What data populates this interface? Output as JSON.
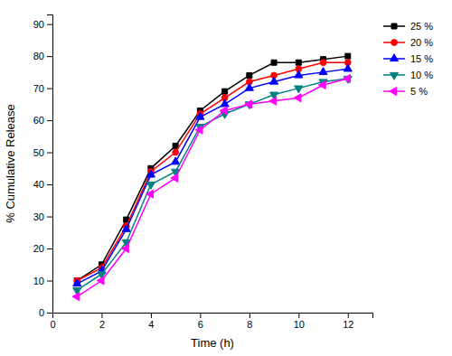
{
  "chart_data": {
    "type": "line",
    "x": [
      1,
      2,
      3,
      4,
      5,
      6,
      7,
      8,
      9,
      10,
      11,
      12
    ],
    "series": [
      {
        "name": "25 %",
        "color": "#000000",
        "marker": "square",
        "values": [
          10,
          15,
          29,
          45,
          52,
          63,
          69,
          74,
          78,
          78,
          79,
          80
        ]
      },
      {
        "name": "20 %",
        "color": "#ff0000",
        "marker": "circle",
        "values": [
          10,
          14,
          27,
          44,
          50,
          62,
          67,
          72,
          74,
          76,
          78,
          78
        ]
      },
      {
        "name": "15 %",
        "color": "#0000ff",
        "marker": "triangle-up",
        "values": [
          9,
          13,
          26,
          43,
          47,
          61,
          65,
          70,
          72,
          74,
          75,
          76
        ]
      },
      {
        "name": "10 %",
        "color": "#008080",
        "marker": "triangle-down",
        "values": [
          7,
          12,
          22,
          40,
          44,
          58,
          62,
          65,
          68,
          70,
          72,
          73
        ]
      },
      {
        "name": "5 %",
        "color": "#ff00ff",
        "marker": "triangle-left",
        "values": [
          5,
          10,
          20,
          37,
          42,
          57,
          63,
          65,
          66,
          67,
          71,
          73
        ]
      }
    ],
    "xlabel": "Time (h)",
    "ylabel": "% Cumulative Release",
    "xlim": [
      0,
      13
    ],
    "ylim": [
      0,
      93
    ],
    "xticks": [
      0,
      2,
      4,
      6,
      8,
      10,
      12
    ],
    "yticks": [
      0,
      10,
      20,
      30,
      40,
      50,
      60,
      70,
      80,
      90
    ],
    "grid": false,
    "legend": "upper right"
  }
}
